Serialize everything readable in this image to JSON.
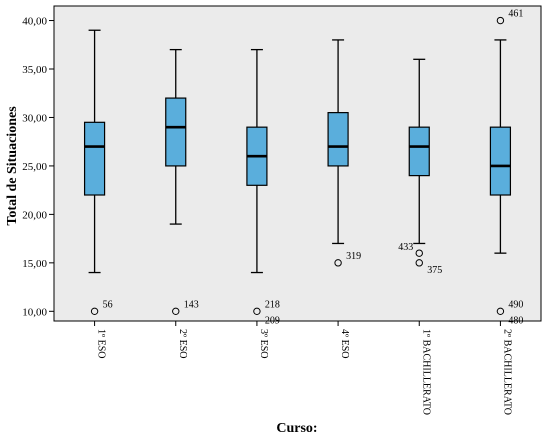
{
  "chart_data": {
    "type": "boxplot",
    "xlabel": "Curso:",
    "ylabel": "Total de Situaciones",
    "ylim": [
      9,
      41.5
    ],
    "yticks": [
      "10,00",
      "15,00",
      "20,00",
      "25,00",
      "30,00",
      "35,00",
      "40,00"
    ],
    "ytick_values": [
      10,
      15,
      20,
      25,
      30,
      35,
      40
    ],
    "grid": false,
    "box_color": "#5aaedc",
    "plot_background": "#ebebeb",
    "categories": [
      "1º ESO",
      "2º ESO",
      "3º ESO",
      "4º ESO",
      "1º BACHILLERATO",
      "2º BACHILLERATO"
    ],
    "boxes": [
      {
        "whisker_low": 14,
        "q1": 22,
        "median": 27,
        "q3": 29.5,
        "whisker_high": 39,
        "outliers": [
          {
            "value": 10,
            "labels": [
              "56"
            ]
          }
        ]
      },
      {
        "whisker_low": 19,
        "q1": 25,
        "median": 29,
        "q3": 32,
        "whisker_high": 37,
        "outliers": [
          {
            "value": 10,
            "labels": [
              "143"
            ]
          }
        ]
      },
      {
        "whisker_low": 14,
        "q1": 23,
        "median": 26,
        "q3": 29,
        "whisker_high": 37,
        "outliers": [
          {
            "value": 10,
            "labels": [
              "218",
              "209"
            ]
          }
        ]
      },
      {
        "whisker_low": 17,
        "q1": 25,
        "median": 27,
        "q3": 30.5,
        "whisker_high": 38,
        "outliers": [
          {
            "value": 15,
            "labels": [
              "319"
            ]
          }
        ]
      },
      {
        "whisker_low": 17,
        "q1": 24,
        "median": 27,
        "q3": 29,
        "whisker_high": 36,
        "outliers": [
          {
            "value": 16,
            "labels": [
              "433"
            ]
          },
          {
            "value": 15,
            "labels": [
              "375"
            ]
          }
        ]
      },
      {
        "whisker_low": 16,
        "q1": 22,
        "median": 25,
        "q3": 29,
        "whisker_high": 38,
        "outliers": [
          {
            "value": 40,
            "labels": [
              "461"
            ]
          },
          {
            "value": 10,
            "labels": [
              "490",
              "480"
            ]
          }
        ]
      }
    ]
  }
}
